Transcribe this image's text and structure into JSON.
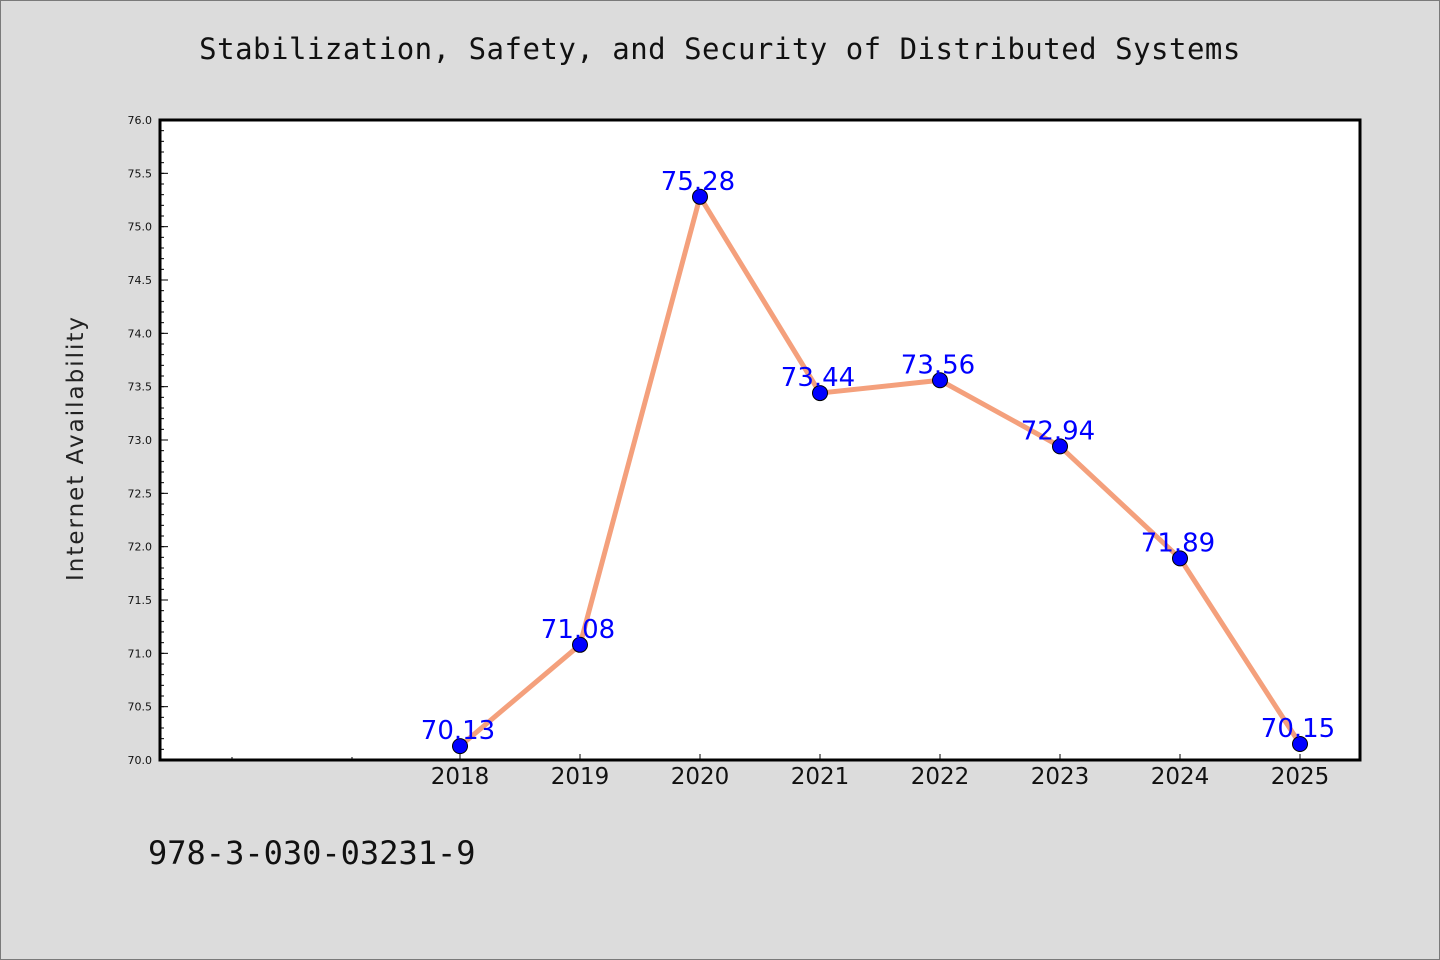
{
  "chart_data": {
    "type": "line",
    "title": "Stabilization, Safety, and Security of Distributed Systems",
    "xlabel": "",
    "ylabel": "Internet Availability",
    "categories": [
      "2018",
      "2019",
      "2020",
      "2021",
      "2022",
      "2023",
      "2024",
      "2025"
    ],
    "values": [
      70.13,
      71.08,
      75.28,
      73.44,
      73.56,
      72.94,
      71.89,
      70.15
    ],
    "data_labels": [
      "70.13",
      "71.08",
      "75.28",
      "73.44",
      "73.56",
      "72.94",
      "71.89",
      "70.15"
    ],
    "ylim": [
      70.0,
      76.0
    ],
    "yticks": [
      "70.0",
      "70.5",
      "71.0",
      "71.5",
      "72.0",
      "72.5",
      "73.0",
      "73.5",
      "74.0",
      "74.5",
      "75.0",
      "75.5",
      "76.0"
    ],
    "grid": false,
    "legend": "none",
    "colors": {
      "line": "#f4a07c",
      "marker": "#0000ff",
      "label": "#0000ff",
      "plot_background": "#ffffff",
      "figure_background": "#dcdcdc"
    }
  },
  "footer": {
    "isbn": "978-3-030-03231-9"
  }
}
